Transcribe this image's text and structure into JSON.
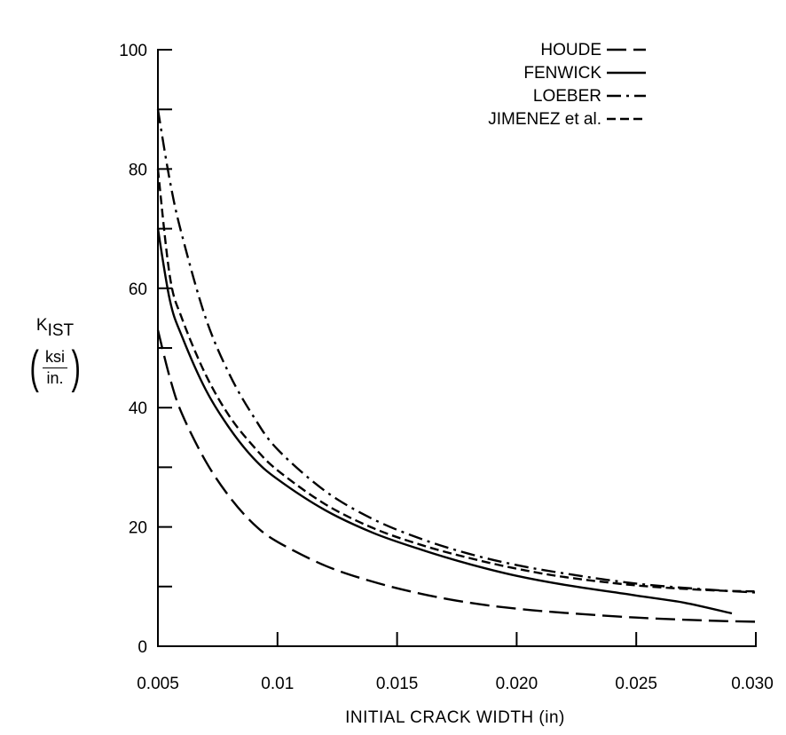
{
  "chart_data": {
    "type": "line",
    "title": "",
    "xlabel": "INITIAL CRACK WIDTH (in)",
    "ylabel": {
      "symbol": "K",
      "subscript": "IST",
      "unit_numerator": "ksi",
      "unit_denominator": "in."
    },
    "xlim": [
      0.005,
      0.03
    ],
    "ylim": [
      0,
      100
    ],
    "x_ticks": [
      0.005,
      0.01,
      0.015,
      0.02,
      0.025,
      0.03
    ],
    "x_tick_labels": [
      "0.005",
      "0.01",
      "0.015",
      "0.020",
      "0.025",
      "0.030"
    ],
    "y_ticks": [
      0,
      20,
      40,
      60,
      80,
      100
    ],
    "y_tick_labels": [
      "0",
      "20",
      "40",
      "60",
      "80",
      "100"
    ],
    "grid": false,
    "legend_position": "top-right",
    "series": [
      {
        "name": "HOUDE",
        "dash": "long-dash",
        "x": [
          0.005,
          0.0055,
          0.006,
          0.007,
          0.008,
          0.009,
          0.01,
          0.012,
          0.014,
          0.016,
          0.018,
          0.02,
          0.022,
          0.025,
          0.028,
          0.03
        ],
        "y": [
          53,
          45,
          39,
          31,
          25,
          20.5,
          17.5,
          13.5,
          10.8,
          8.8,
          7.3,
          6.3,
          5.6,
          4.8,
          4.3,
          4.1
        ]
      },
      {
        "name": "FENWICK",
        "dash": "solid",
        "x": [
          0.005,
          0.0055,
          0.006,
          0.007,
          0.008,
          0.009,
          0.01,
          0.012,
          0.014,
          0.016,
          0.018,
          0.02,
          0.022,
          0.025,
          0.027,
          0.029
        ],
        "y": [
          70,
          58,
          52,
          43,
          36.5,
          31.5,
          28,
          22.8,
          19,
          16.2,
          13.8,
          11.8,
          10.3,
          8.5,
          7.3,
          5.5
        ]
      },
      {
        "name": "LOEBER",
        "dash": "dash-dot",
        "x": [
          0.005,
          0.0055,
          0.006,
          0.007,
          0.008,
          0.009,
          0.01,
          0.012,
          0.014,
          0.016,
          0.018,
          0.02,
          0.022,
          0.025,
          0.028,
          0.03
        ],
        "y": [
          90,
          78,
          69,
          55,
          45.5,
          38.5,
          33,
          26,
          21.3,
          18,
          15.5,
          13.6,
          12.2,
          10.5,
          9.5,
          9
        ]
      },
      {
        "name": "JIMENEZ et al.",
        "dash": "short-dash",
        "x": [
          0.005,
          0.0055,
          0.006,
          0.007,
          0.008,
          0.009,
          0.01,
          0.012,
          0.014,
          0.016,
          0.018,
          0.02,
          0.022,
          0.025,
          0.028,
          0.03
        ],
        "y": [
          80,
          62,
          55,
          45.5,
          38.5,
          33.5,
          29.5,
          23.8,
          19.8,
          17,
          14.8,
          13,
          11.6,
          10.2,
          9.4,
          9.2
        ]
      }
    ]
  }
}
